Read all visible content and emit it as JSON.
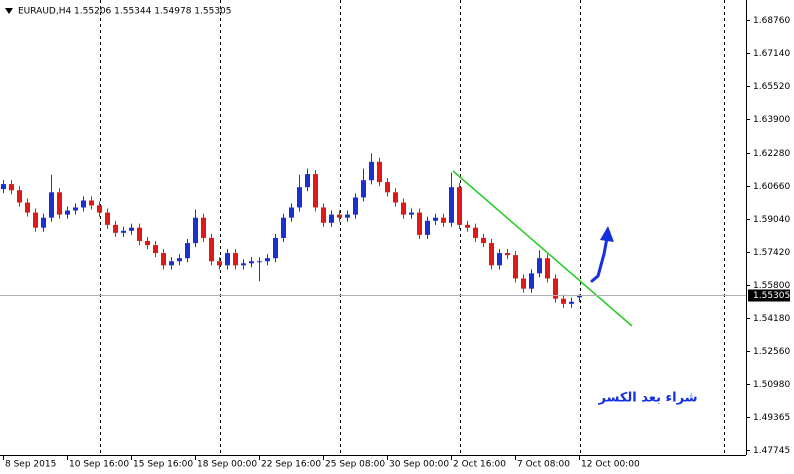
{
  "chart_data": {
    "type": "candlestick",
    "title": "EURAUD,H4  1.55206 1.55344 1.54978 1.55305",
    "annotation": "شراء بعد الكسر",
    "categories": [
      "8 Sep 2015",
      null,
      null,
      null,
      null,
      null,
      null,
      null,
      "10 Sep 16:00",
      null,
      null,
      null,
      null,
      null,
      null,
      null,
      "15 Sep 16:00",
      null,
      null,
      null,
      null,
      null,
      null,
      null,
      "18 Sep 00:00",
      null,
      null,
      null,
      null,
      null,
      null,
      null,
      "22 Sep 16:00",
      null,
      null,
      null,
      null,
      null,
      null,
      null,
      "25 Sep 08:00",
      null,
      null,
      null,
      null,
      null,
      null,
      null,
      "30 Sep 00:00",
      null,
      null,
      null,
      null,
      null,
      null,
      null,
      "2 Oct 16:00",
      null,
      null,
      null,
      null,
      null,
      null,
      null,
      "7 Oct 08:00",
      null,
      null,
      null,
      null,
      null,
      null,
      null,
      "12 Oct 00:00"
    ],
    "open": [
      1.605,
      1.6074,
      1.6044,
      1.5984,
      1.5935,
      1.5861,
      1.591,
      1.6034,
      1.5925,
      1.5945,
      1.596,
      1.5994,
      1.597,
      1.5935,
      1.5875,
      1.5836,
      1.5846,
      1.5861,
      1.5796,
      1.5776,
      1.5737,
      1.5677,
      1.5697,
      1.5712,
      1.5786,
      1.591,
      1.5811,
      1.5697,
      1.5677,
      1.5737,
      1.5677,
      1.5687,
      1.5697,
      1.5697,
      1.5712,
      1.5811,
      1.591,
      1.596,
      1.6059,
      1.6123,
      1.596,
      1.5885,
      1.5925,
      1.591,
      1.5925,
      1.6009,
      1.6093,
      1.6183,
      1.6084,
      1.6034,
      1.5984,
      1.5925,
      1.5935,
      1.5826,
      1.5895,
      1.591,
      1.5885,
      1.6059,
      1.5875,
      1.5861,
      1.5811,
      1.5786,
      1.5677,
      1.5737,
      1.5727,
      1.5613,
      1.5563,
      1.5638,
      1.5712,
      1.5613,
      1.5514,
      1.5489,
      1.55206
    ],
    "high": [
      1.6094,
      1.6094,
      1.6064,
      1.6004,
      1.5955,
      1.593,
      1.612,
      1.6054,
      1.5965,
      1.598,
      1.6014,
      1.6014,
      1.599,
      1.5955,
      1.5895,
      1.5866,
      1.5881,
      1.5881,
      1.5816,
      1.5796,
      1.5757,
      1.5717,
      1.5732,
      1.5806,
      1.595,
      1.593,
      1.5831,
      1.5717,
      1.5757,
      1.5757,
      1.5707,
      1.5717,
      1.5717,
      1.5732,
      1.5831,
      1.593,
      1.598,
      1.612,
      1.615,
      1.6143,
      1.598,
      1.5945,
      1.5945,
      1.5945,
      1.6029,
      1.615,
      1.6225,
      1.6203,
      1.6104,
      1.6054,
      1.6004,
      1.5955,
      1.5955,
      1.5915,
      1.593,
      1.593,
      1.613,
      1.6079,
      1.5895,
      1.5881,
      1.5831,
      1.5806,
      1.5757,
      1.5757,
      1.5747,
      1.5633,
      1.5658,
      1.575,
      1.5732,
      1.5633,
      1.5534,
      1.5519,
      1.55344
    ],
    "low": [
      1.603,
      1.6024,
      1.5964,
      1.5915,
      1.5841,
      1.5841,
      1.589,
      1.5905,
      1.5905,
      1.5925,
      1.594,
      1.595,
      1.5915,
      1.5855,
      1.5816,
      1.5816,
      1.5826,
      1.5776,
      1.5756,
      1.5717,
      1.5657,
      1.5657,
      1.5677,
      1.5692,
      1.5766,
      1.5791,
      1.5677,
      1.5657,
      1.5657,
      1.5657,
      1.5657,
      1.5667,
      1.56,
      1.5677,
      1.5692,
      1.5791,
      1.589,
      1.594,
      1.6039,
      1.594,
      1.5865,
      1.5865,
      1.589,
      1.589,
      1.5905,
      1.5989,
      1.6073,
      1.6064,
      1.6014,
      1.5964,
      1.5905,
      1.5905,
      1.5806,
      1.5806,
      1.5875,
      1.5865,
      1.5865,
      1.5855,
      1.5841,
      1.5791,
      1.5766,
      1.5657,
      1.5657,
      1.5707,
      1.5593,
      1.5543,
      1.5543,
      1.5618,
      1.5593,
      1.5494,
      1.5469,
      1.5469,
      1.54978
    ],
    "close": [
      1.6074,
      1.6044,
      1.5984,
      1.5935,
      1.5861,
      1.591,
      1.6034,
      1.5925,
      1.5945,
      1.596,
      1.5994,
      1.597,
      1.5935,
      1.5875,
      1.5836,
      1.5846,
      1.5861,
      1.5796,
      1.5776,
      1.5737,
      1.5677,
      1.5697,
      1.5712,
      1.5786,
      1.591,
      1.5811,
      1.5697,
      1.5677,
      1.5737,
      1.5677,
      1.5687,
      1.5697,
      1.5697,
      1.5712,
      1.5811,
      1.591,
      1.596,
      1.6059,
      1.6123,
      1.596,
      1.5885,
      1.5925,
      1.591,
      1.5925,
      1.6009,
      1.6093,
      1.6183,
      1.6084,
      1.6034,
      1.5984,
      1.5925,
      1.5935,
      1.5826,
      1.5895,
      1.591,
      1.5885,
      1.6059,
      1.5875,
      1.5861,
      1.5811,
      1.5786,
      1.5677,
      1.5737,
      1.5727,
      1.5613,
      1.5563,
      1.5638,
      1.5712,
      1.5613,
      1.5514,
      1.5489,
      1.5499,
      1.55305
    ],
    "up_color": "#1c2fd0",
    "down_color": "#e01818",
    "current_price": 1.55305,
    "ylim": [
      1.475,
      1.6974
    ],
    "yticks": [
      {
        "value": 1.6876,
        "label": "1.68760"
      },
      {
        "value": 1.6714,
        "label": "1.67140"
      },
      {
        "value": 1.6552,
        "label": "1.65520"
      },
      {
        "value": 1.639,
        "label": "1.63900"
      },
      {
        "value": 1.6228,
        "label": "1.62280"
      },
      {
        "value": 1.6066,
        "label": "1.60660"
      },
      {
        "value": 1.5904,
        "label": "1.59040"
      },
      {
        "value": 1.5742,
        "label": "1.57420"
      },
      {
        "value": 1.558,
        "label": "1.55800"
      },
      {
        "value": 1.5418,
        "label": "1.54180"
      },
      {
        "value": 1.5256,
        "label": "1.52560"
      },
      {
        "value": 1.5098,
        "label": "1.50980"
      },
      1.49365,
      1.47745
    ]
  }
}
